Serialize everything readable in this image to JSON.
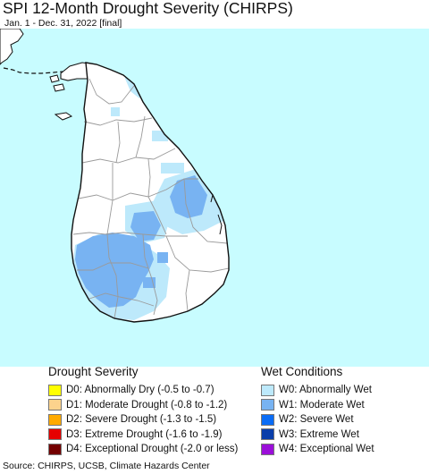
{
  "header": {
    "title": "SPI 12-Month Drought Severity (CHIRPS)",
    "subtitle": "Jan. 1 - Dec. 31, 2022 [final]"
  },
  "map": {
    "ocean_color": "#c8fcff",
    "land_color": "#ffffff",
    "border_color": "#111111",
    "district_line_color": "#9a9a9a",
    "w0_color": "#bde9fb",
    "w1_color": "#78b3f2"
  },
  "drought_legend": {
    "heading": "Drought Severity",
    "items": [
      {
        "code": "D0",
        "label": "D0: Abnormally Dry (-0.5 to -0.7)",
        "color": "#ffff00"
      },
      {
        "code": "D1",
        "label": "D1: Moderate Drought (-0.8 to -1.2)",
        "color": "#fcd38d"
      },
      {
        "code": "D2",
        "label": "D2: Severe Drought (-1.3 to -1.5)",
        "color": "#ffaa00"
      },
      {
        "code": "D3",
        "label": "D3: Extreme Drought (-1.6 to -1.9)",
        "color": "#e60000"
      },
      {
        "code": "D4",
        "label": "D4: Exceptional Drought (-2.0 or less)",
        "color": "#730000"
      }
    ]
  },
  "wet_legend": {
    "heading": "Wet Conditions",
    "items": [
      {
        "code": "W0",
        "label": "W0: Abnormally Wet",
        "color": "#bde9fb"
      },
      {
        "code": "W1",
        "label": "W1: Moderate Wet",
        "color": "#78b3f2"
      },
      {
        "code": "W2",
        "label": "W2: Severe Wet",
        "color": "#0a6cf5"
      },
      {
        "code": "W3",
        "label": "W3: Extreme Wet",
        "color": "#0a3eaa"
      },
      {
        "code": "W4",
        "label": "W4: Exceptional Wet",
        "color": "#9b0fd9"
      }
    ]
  },
  "footer": {
    "source": "Source: CHIRPS, UCSB, Climate Hazards Center"
  }
}
